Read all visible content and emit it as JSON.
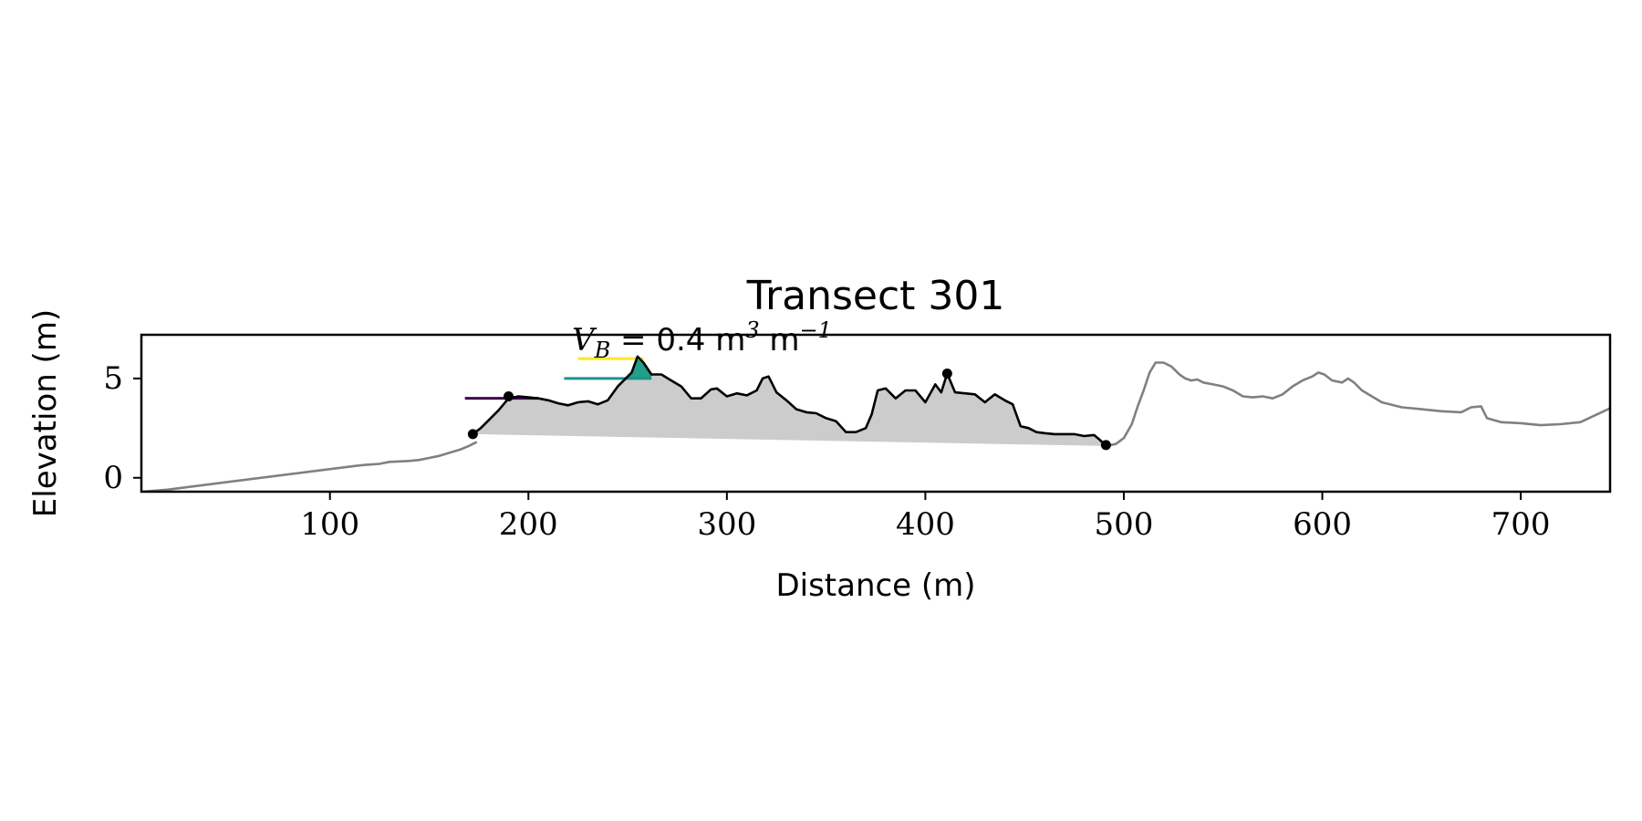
{
  "chart_data": {
    "type": "line",
    "title": "Transect 301",
    "xlabel": "Distance (m)",
    "ylabel": "Elevation (m)",
    "xlim": [
      5,
      745
    ],
    "ylim": [
      -0.7,
      7.2
    ],
    "xticks": [
      100,
      200,
      300,
      400,
      500,
      600,
      700
    ],
    "yticks": [
      0,
      5
    ],
    "grid": false,
    "annotation": {
      "math_v": "V",
      "math_sub": "B",
      "math_eq": " = ",
      "value_text": "0.4 m",
      "sup1": "3",
      "unit2": " m",
      "sup2": "−1"
    },
    "series": [
      {
        "role": "profile-left",
        "color": "#808080",
        "points": [
          [
            5,
            -0.7
          ],
          [
            18,
            -0.6
          ],
          [
            113,
            0.6
          ],
          [
            118,
            0.65
          ],
          [
            125,
            0.7
          ],
          [
            130,
            0.8
          ],
          [
            140,
            0.85
          ],
          [
            145,
            0.9
          ],
          [
            150,
            1.0
          ],
          [
            155,
            1.1
          ],
          [
            160,
            1.25
          ],
          [
            165,
            1.4
          ],
          [
            170,
            1.6
          ],
          [
            172,
            1.7
          ],
          [
            174,
            1.8
          ]
        ]
      },
      {
        "role": "profile-right",
        "color": "#808080",
        "points": [
          [
            491,
            1.6
          ],
          [
            496,
            1.7
          ],
          [
            500,
            2.0
          ],
          [
            504,
            2.7
          ],
          [
            507,
            3.6
          ],
          [
            510,
            4.4
          ],
          [
            513,
            5.3
          ],
          [
            516,
            5.8
          ],
          [
            520,
            5.8
          ],
          [
            524,
            5.6
          ],
          [
            528,
            5.2
          ],
          [
            531,
            5.0
          ],
          [
            534,
            4.9
          ],
          [
            537,
            4.95
          ],
          [
            540,
            4.8
          ],
          [
            545,
            4.7
          ],
          [
            550,
            4.6
          ],
          [
            555,
            4.4
          ],
          [
            560,
            4.1
          ],
          [
            565,
            4.05
          ],
          [
            570,
            4.1
          ],
          [
            575,
            4.0
          ],
          [
            580,
            4.2
          ],
          [
            585,
            4.6
          ],
          [
            590,
            4.9
          ],
          [
            595,
            5.1
          ],
          [
            598,
            5.3
          ],
          [
            601,
            5.2
          ],
          [
            605,
            4.9
          ],
          [
            610,
            4.8
          ],
          [
            613,
            5.0
          ],
          [
            616,
            4.8
          ],
          [
            620,
            4.4
          ],
          [
            625,
            4.1
          ],
          [
            630,
            3.8
          ],
          [
            640,
            3.55
          ],
          [
            650,
            3.45
          ],
          [
            660,
            3.35
          ],
          [
            670,
            3.3
          ],
          [
            675,
            3.55
          ],
          [
            680,
            3.6
          ],
          [
            683,
            3.0
          ],
          [
            690,
            2.8
          ],
          [
            700,
            2.75
          ],
          [
            710,
            2.65
          ],
          [
            720,
            2.7
          ],
          [
            730,
            2.8
          ],
          [
            745,
            3.5
          ]
        ]
      },
      {
        "role": "dune-profile",
        "color": "#000000",
        "points": [
          [
            172,
            2.2
          ],
          [
            176,
            2.5
          ],
          [
            181,
            3.0
          ],
          [
            185,
            3.4
          ],
          [
            190,
            4.0
          ],
          [
            195,
            4.1
          ],
          [
            200,
            4.05
          ],
          [
            205,
            4.0
          ],
          [
            210,
            3.9
          ],
          [
            215,
            3.75
          ],
          [
            220,
            3.65
          ],
          [
            225,
            3.8
          ],
          [
            230,
            3.85
          ],
          [
            235,
            3.7
          ],
          [
            240,
            3.9
          ],
          [
            245,
            4.6
          ],
          [
            249,
            5.0
          ],
          [
            252,
            5.3
          ],
          [
            255,
            6.1
          ],
          [
            258,
            5.8
          ],
          [
            262,
            5.2
          ],
          [
            267,
            5.2
          ],
          [
            272,
            4.9
          ],
          [
            277,
            4.6
          ],
          [
            282,
            4.0
          ],
          [
            287,
            4.0
          ],
          [
            292,
            4.45
          ],
          [
            295,
            4.5
          ],
          [
            300,
            4.1
          ],
          [
            305,
            4.25
          ],
          [
            310,
            4.15
          ],
          [
            315,
            4.4
          ],
          [
            318,
            5.0
          ],
          [
            321,
            5.1
          ],
          [
            325,
            4.3
          ],
          [
            330,
            3.9
          ],
          [
            335,
            3.45
          ],
          [
            340,
            3.3
          ],
          [
            345,
            3.25
          ],
          [
            350,
            3.0
          ],
          [
            355,
            2.85
          ],
          [
            360,
            2.3
          ],
          [
            365,
            2.3
          ],
          [
            370,
            2.5
          ],
          [
            373,
            3.2
          ],
          [
            376,
            4.4
          ],
          [
            380,
            4.5
          ],
          [
            385,
            4.0
          ],
          [
            390,
            4.4
          ],
          [
            395,
            4.4
          ],
          [
            400,
            3.8
          ],
          [
            405,
            4.7
          ],
          [
            408,
            4.3
          ],
          [
            411,
            5.25
          ],
          [
            415,
            4.3
          ],
          [
            420,
            4.25
          ],
          [
            425,
            4.2
          ],
          [
            430,
            3.8
          ],
          [
            435,
            4.2
          ],
          [
            440,
            3.9
          ],
          [
            444,
            3.7
          ],
          [
            448,
            2.6
          ],
          [
            452,
            2.5
          ],
          [
            456,
            2.3
          ],
          [
            460,
            2.25
          ],
          [
            465,
            2.2
          ],
          [
            470,
            2.2
          ],
          [
            475,
            2.2
          ],
          [
            480,
            2.1
          ],
          [
            485,
            2.15
          ],
          [
            488,
            1.9
          ],
          [
            491,
            1.6
          ]
        ]
      }
    ],
    "markers": [
      [
        172,
        2.2
      ],
      [
        190,
        4.1
      ],
      [
        411,
        5.25
      ],
      [
        491,
        1.65
      ]
    ],
    "fill_base": [
      [
        172,
        2.2
      ],
      [
        491,
        1.6
      ]
    ],
    "fill_color": "#cccccc",
    "levels": [
      {
        "y": 4.0,
        "x": [
          168,
          205
        ],
        "color": "#440154"
      },
      {
        "y": 5.0,
        "x": [
          218,
          262
        ],
        "color": "#21918c"
      },
      {
        "y": 6.0,
        "x": [
          225,
          258
        ],
        "color": "#fde725"
      }
    ],
    "peak_fill": {
      "color": "#21a08a",
      "level": 5.0,
      "points": [
        [
          249,
          5.0
        ],
        [
          252,
          5.3
        ],
        [
          255,
          6.1
        ],
        [
          258,
          5.8
        ],
        [
          262,
          5.2
        ],
        [
          262,
          5.0
        ]
      ]
    }
  }
}
